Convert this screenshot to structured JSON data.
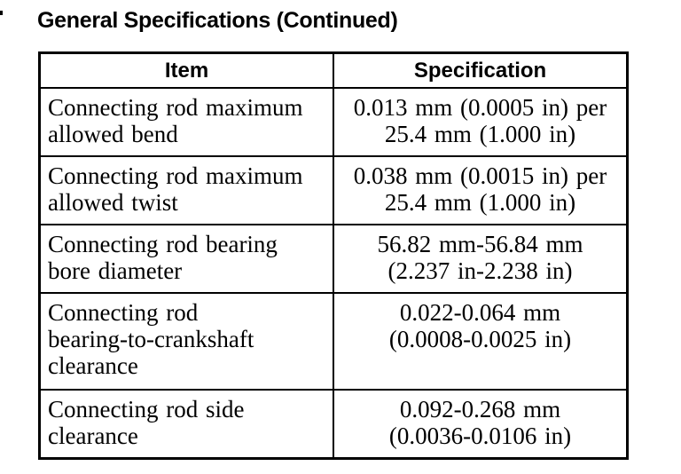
{
  "page": {
    "title": "General Specifications (Continued)"
  },
  "table": {
    "headers": [
      "Item",
      "Specification"
    ],
    "rows": [
      {
        "item": "Connecting rod maximum\nallowed bend",
        "spec": "0.013 mm (0.0005 in) per\n25.4 mm (1.000 in)"
      },
      {
        "item": "Connecting rod maximum\nallowed twist",
        "spec": "0.038 mm (0.0015 in) per\n25.4 mm (1.000 in)"
      },
      {
        "item": "Connecting rod bearing\nbore diameter",
        "spec": "56.82 mm-56.84 mm\n(2.237 in-2.238 in)"
      },
      {
        "item": "Connecting rod\nbearing-to-crankshaft\nclearance",
        "spec": "0.022-0.064 mm\n(0.0008-0.0025 in)"
      },
      {
        "item": "Connecting rod side\nclearance",
        "spec": "0.092-0.268 mm\n(0.0036-0.0106 in)"
      }
    ]
  },
  "colors": {
    "text": "#000000",
    "background": "#ffffff",
    "border": "#000000"
  }
}
